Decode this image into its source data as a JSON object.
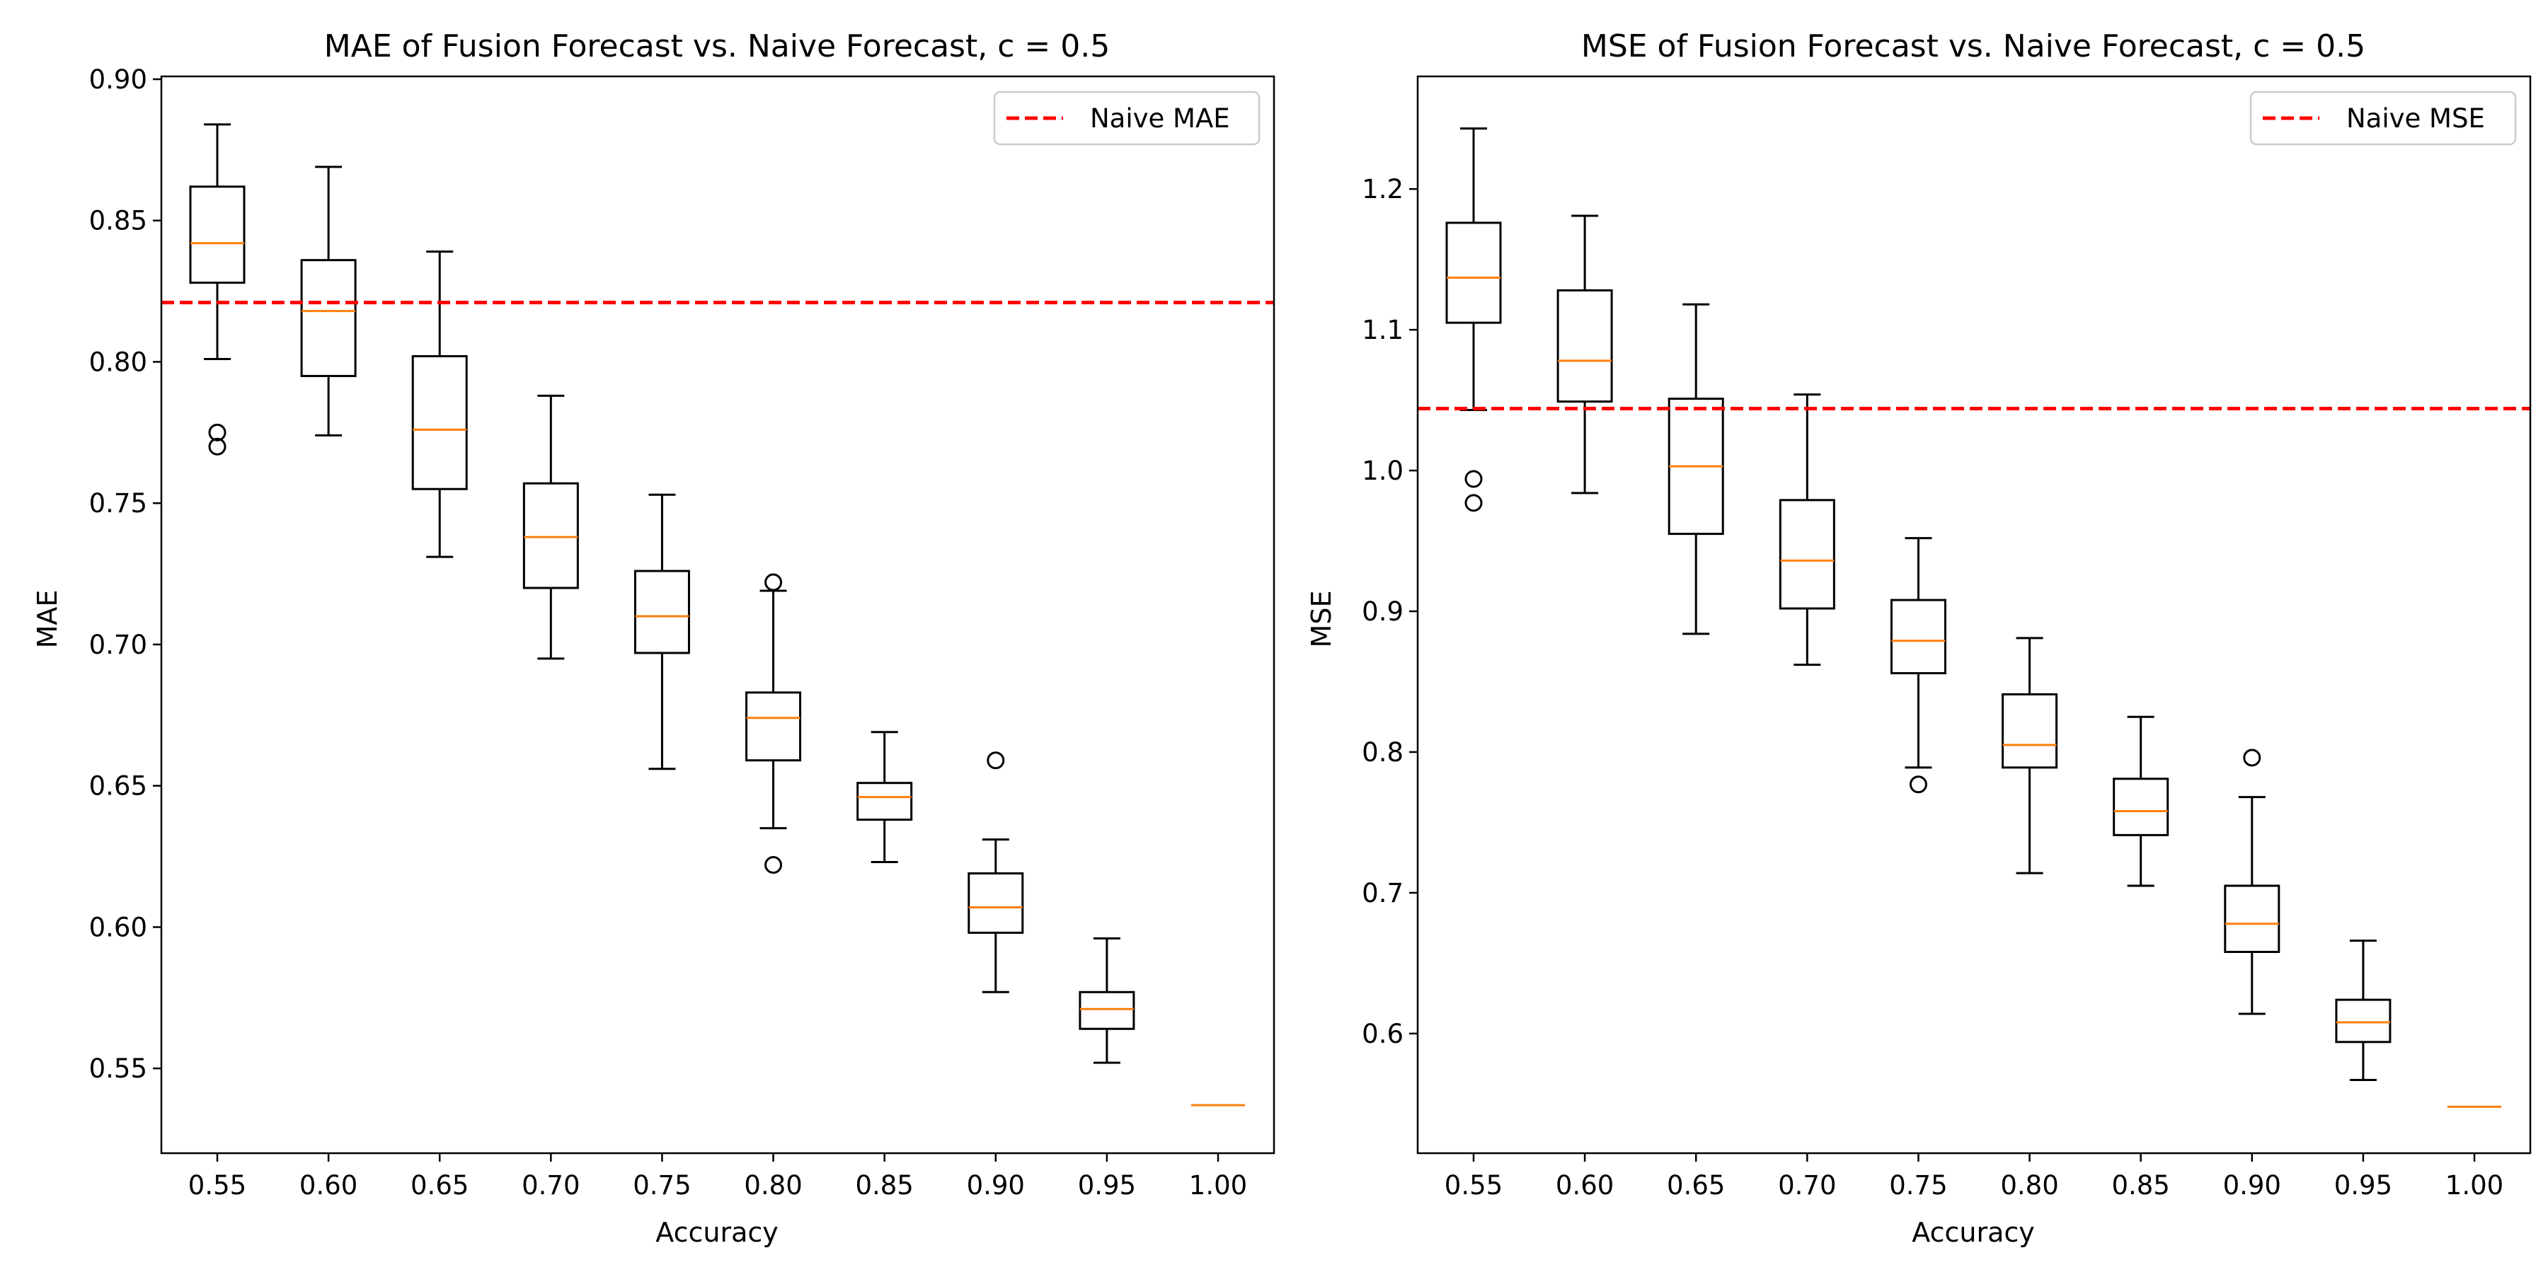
{
  "colors": {
    "box": "#000000",
    "median": "#ff7f0e",
    "naive_line": "#ff0000"
  },
  "chart_data": [
    {
      "type": "box",
      "title": "MAE of Fusion Forecast vs. Naive Forecast, c = 0.5",
      "xlabel": "Accuracy",
      "ylabel": "MAE",
      "ylim": [
        0.52,
        0.901
      ],
      "yticks": [
        "0.55",
        "0.60",
        "0.65",
        "0.70",
        "0.75",
        "0.80",
        "0.85",
        "0.90"
      ],
      "categories": [
        "0.55",
        "0.60",
        "0.65",
        "0.70",
        "0.75",
        "0.80",
        "0.85",
        "0.90",
        "0.95",
        "1.00"
      ],
      "boxes": [
        {
          "whislo": 0.801,
          "q1": 0.828,
          "med": 0.842,
          "q3": 0.862,
          "whishi": 0.884,
          "fliers": [
            0.775,
            0.77
          ]
        },
        {
          "whislo": 0.774,
          "q1": 0.795,
          "med": 0.818,
          "q3": 0.836,
          "whishi": 0.869,
          "fliers": []
        },
        {
          "whislo": 0.731,
          "q1": 0.755,
          "med": 0.776,
          "q3": 0.802,
          "whishi": 0.839,
          "fliers": []
        },
        {
          "whislo": 0.695,
          "q1": 0.72,
          "med": 0.738,
          "q3": 0.757,
          "whishi": 0.788,
          "fliers": []
        },
        {
          "whislo": 0.656,
          "q1": 0.697,
          "med": 0.71,
          "q3": 0.726,
          "whishi": 0.753,
          "fliers": []
        },
        {
          "whislo": 0.635,
          "q1": 0.659,
          "med": 0.674,
          "q3": 0.683,
          "whishi": 0.719,
          "fliers": [
            0.722,
            0.622
          ]
        },
        {
          "whislo": 0.623,
          "q1": 0.638,
          "med": 0.646,
          "q3": 0.651,
          "whishi": 0.669,
          "fliers": []
        },
        {
          "whislo": 0.577,
          "q1": 0.598,
          "med": 0.607,
          "q3": 0.619,
          "whishi": 0.631,
          "fliers": [
            0.659
          ]
        },
        {
          "whislo": 0.552,
          "q1": 0.564,
          "med": 0.571,
          "q3": 0.577,
          "whishi": 0.596,
          "fliers": []
        },
        {
          "whislo": 0.537,
          "q1": 0.537,
          "med": 0.537,
          "q3": 0.537,
          "whishi": 0.537,
          "fliers": []
        }
      ],
      "reference_line": {
        "label": "Naive MAE",
        "value": 0.821
      },
      "legend_position": "upper right"
    },
    {
      "type": "box",
      "title": "MSE of Fusion Forecast vs. Naive Forecast, c = 0.5",
      "xlabel": "Accuracy",
      "ylabel": "MSE",
      "ylim": [
        0.515,
        1.28
      ],
      "yticks": [
        "0.6",
        "0.7",
        "0.8",
        "0.9",
        "1.0",
        "1.1",
        "1.2"
      ],
      "categories": [
        "0.55",
        "0.60",
        "0.65",
        "0.70",
        "0.75",
        "0.80",
        "0.85",
        "0.90",
        "0.95",
        "1.00"
      ],
      "boxes": [
        {
          "whislo": 1.043,
          "q1": 1.105,
          "med": 1.137,
          "q3": 1.176,
          "whishi": 1.243,
          "fliers": [
            0.994,
            0.977
          ]
        },
        {
          "whislo": 0.984,
          "q1": 1.049,
          "med": 1.078,
          "q3": 1.128,
          "whishi": 1.181,
          "fliers": []
        },
        {
          "whislo": 0.884,
          "q1": 0.955,
          "med": 1.003,
          "q3": 1.051,
          "whishi": 1.118,
          "fliers": []
        },
        {
          "whislo": 0.862,
          "q1": 0.902,
          "med": 0.936,
          "q3": 0.979,
          "whishi": 1.054,
          "fliers": []
        },
        {
          "whislo": 0.789,
          "q1": 0.856,
          "med": 0.879,
          "q3": 0.908,
          "whishi": 0.952,
          "fliers": [
            0.777
          ]
        },
        {
          "whislo": 0.714,
          "q1": 0.789,
          "med": 0.805,
          "q3": 0.841,
          "whishi": 0.881,
          "fliers": []
        },
        {
          "whislo": 0.705,
          "q1": 0.741,
          "med": 0.758,
          "q3": 0.781,
          "whishi": 0.825,
          "fliers": []
        },
        {
          "whislo": 0.614,
          "q1": 0.658,
          "med": 0.678,
          "q3": 0.705,
          "whishi": 0.768,
          "fliers": [
            0.796
          ]
        },
        {
          "whislo": 0.567,
          "q1": 0.594,
          "med": 0.608,
          "q3": 0.624,
          "whishi": 0.666,
          "fliers": []
        },
        {
          "whislo": 0.548,
          "q1": 0.548,
          "med": 0.548,
          "q3": 0.548,
          "whishi": 0.548,
          "fliers": []
        }
      ],
      "reference_line": {
        "label": "Naive MSE",
        "value": 1.044
      },
      "legend_position": "upper right"
    }
  ]
}
